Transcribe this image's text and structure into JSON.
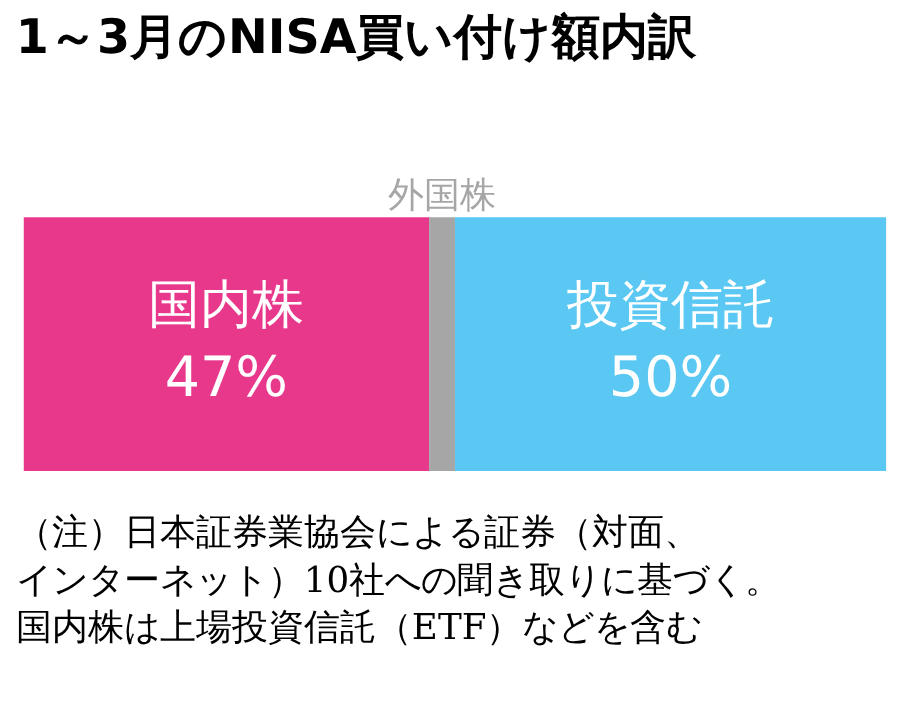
{
  "chart_data": {
    "type": "bar",
    "title": "1～3月のNISA買い付け額内訳",
    "orientation": "horizontal",
    "stacked": true,
    "categories": [
      null
    ],
    "series": [
      {
        "name": "国内株",
        "color": "#e8388c",
        "values": [
          47
        ],
        "value_labels": [
          "47%"
        ]
      },
      {
        "name": "外国株",
        "color": "#a6a6a6",
        "values": [
          3
        ],
        "value_labels": [
          null
        ]
      },
      {
        "name": "投資信託",
        "color": "#5ac8f2",
        "values": [
          50
        ],
        "value_labels": [
          "50%"
        ]
      }
    ],
    "annotations": [
      "（注）日本証券業協会による証券（対面、",
      "インターネット）10社への聞き取りに基づく。",
      "国内株は上場投資信託（ETF）などを含む"
    ]
  }
}
